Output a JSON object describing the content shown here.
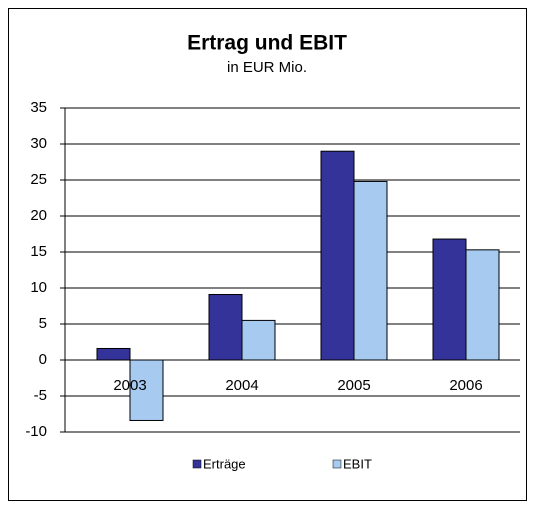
{
  "chart_data": {
    "type": "bar",
    "title": "Ertrag und EBIT",
    "subtitle": "in EUR Mio.",
    "categories": [
      "2003",
      "2004",
      "2005",
      "2006"
    ],
    "series": [
      {
        "name": "Erträge",
        "color": "#333399",
        "values": [
          1.6,
          9.1,
          29,
          16.8
        ]
      },
      {
        "name": "EBIT",
        "color": "#a6caf0",
        "values": [
          -8.4,
          5.5,
          24.8,
          15.3
        ]
      }
    ],
    "ylim": [
      -10,
      35
    ],
    "yticks": [
      -10,
      -5,
      0,
      5,
      10,
      15,
      20,
      25,
      30,
      35
    ],
    "grid": true,
    "legend": "bottom"
  }
}
